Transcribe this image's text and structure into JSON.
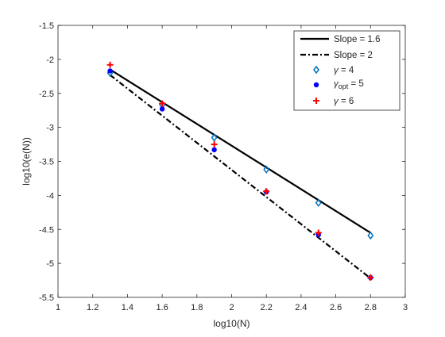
{
  "chart_data": {
    "type": "scatter",
    "xlabel": "log10(N)",
    "ylabel": "log10(e(N))",
    "xlim": [
      1,
      3
    ],
    "ylim": [
      -5.5,
      -1.5
    ],
    "xticks": [
      1,
      1.2,
      1.4,
      1.6,
      1.8,
      2,
      2.2,
      2.4,
      2.6,
      2.8,
      3
    ],
    "xtick_labels": [
      "1",
      "1.2",
      "1.4",
      "1.6",
      "1.8",
      "2",
      "2.2",
      "2.4",
      "2.6",
      "2.8",
      "3"
    ],
    "yticks": [
      -1.5,
      -2,
      -2.5,
      -3,
      -3.5,
      -4,
      -4.5,
      -5,
      -5.5
    ],
    "ytick_labels": [
      "-1.5",
      "-2",
      "-2.5",
      "-3",
      "-3.5",
      "-4",
      "-4.5",
      "-5",
      "-5.5"
    ],
    "grid": false,
    "legend_position": "top-right",
    "series": [
      {
        "name": "Slope = 1.6",
        "kind": "line",
        "style": "solid",
        "color": "#000000",
        "x": [
          1.3,
          2.8
        ],
        "y": [
          -2.15,
          -4.55
        ]
      },
      {
        "name": "Slope = 2",
        "kind": "line",
        "style": "dashdot",
        "color": "#000000",
        "x": [
          1.3,
          2.8
        ],
        "y": [
          -2.23,
          -5.22
        ]
      },
      {
        "name": "γ = 4",
        "kind": "marker",
        "marker": "diamond",
        "color": "#0072BD",
        "x": [
          1.3,
          1.6,
          1.9,
          2.2,
          2.5,
          2.8
        ],
        "y": [
          -2.2,
          -2.67,
          -3.15,
          -3.62,
          -4.11,
          -4.59
        ]
      },
      {
        "name": "γopt = 5",
        "kind": "marker",
        "marker": "dot",
        "color": "#0000FF",
        "x": [
          1.3,
          1.6,
          1.9,
          2.2,
          2.5,
          2.8
        ],
        "y": [
          -2.17,
          -2.73,
          -3.33,
          -3.95,
          -4.58,
          -5.21
        ]
      },
      {
        "name": "γ = 6",
        "kind": "marker",
        "marker": "plus",
        "color": "#FF0000",
        "x": [
          1.3,
          1.6,
          1.9,
          2.2,
          2.5,
          2.8
        ],
        "y": [
          -2.08,
          -2.65,
          -3.25,
          -3.94,
          -4.55,
          -5.21
        ]
      }
    ]
  },
  "legend": [
    {
      "symbol": "Slope",
      "text": "Slope = 1.6"
    },
    {
      "symbol": "Slope",
      "text": "Slope = 2"
    },
    {
      "symbol": "γ",
      "text": " = 4"
    },
    {
      "symbol": "γ",
      "subscript": "opt",
      "text": " = 5"
    },
    {
      "symbol": "γ",
      "text": " = 6"
    }
  ]
}
